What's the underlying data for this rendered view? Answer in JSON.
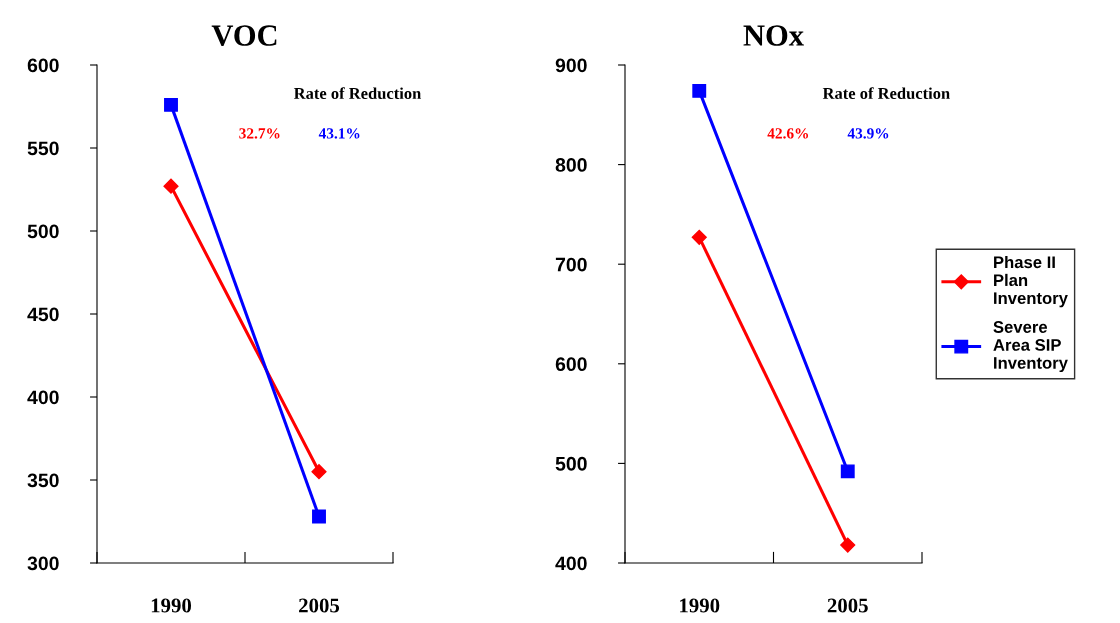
{
  "chart_data": [
    {
      "type": "line",
      "title": "VOC",
      "categories": [
        "1990",
        "2005"
      ],
      "ylim": [
        300,
        600
      ],
      "yticks": [
        300,
        350,
        400,
        450,
        500,
        550,
        600
      ],
      "grid": false,
      "series": [
        {
          "color": "#ff0000",
          "marker": "diamond",
          "values": [
            527,
            355
          ]
        },
        {
          "color": "#0000ff",
          "marker": "square",
          "values": [
            576,
            328
          ]
        }
      ],
      "annotations": [
        "Rate of Reduction",
        "32.7%",
        "43.1%"
      ]
    },
    {
      "type": "line",
      "title": "NOx",
      "categories": [
        "1990",
        "2005"
      ],
      "ylim": [
        400,
        900
      ],
      "yticks": [
        400,
        500,
        600,
        700,
        800,
        900
      ],
      "grid": false,
      "legend": "right",
      "series": [
        {
          "name": "Phase II\nPlan\nInventory",
          "color": "#ff0000",
          "marker": "diamond",
          "values": [
            727,
            418
          ]
        },
        {
          "name": "Severe\nArea SIP\nInventory",
          "color": "#0000ff",
          "marker": "square",
          "values": [
            874,
            492
          ]
        }
      ],
      "annotations": [
        "Rate of Reduction",
        "42.6%",
        "43.9%"
      ]
    }
  ]
}
